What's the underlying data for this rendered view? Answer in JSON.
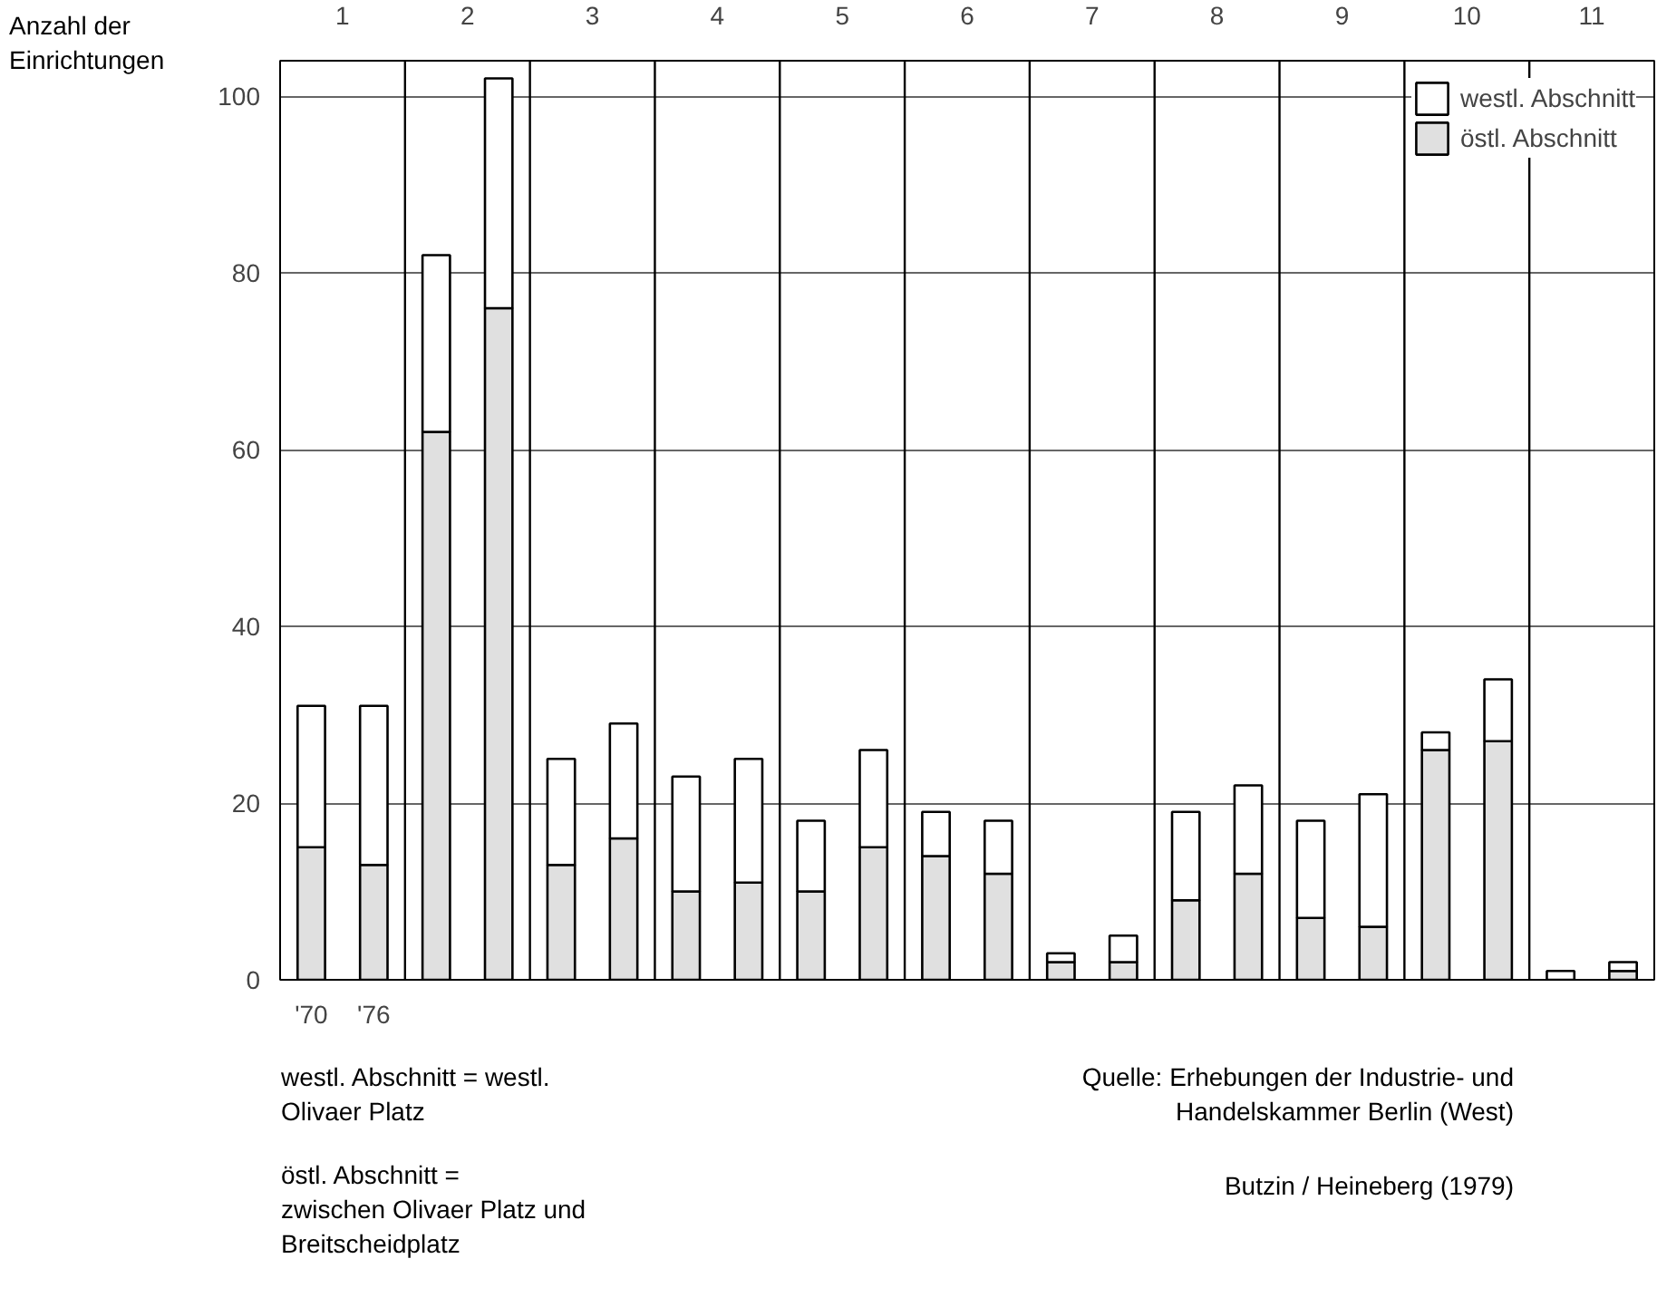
{
  "chart_data": {
    "type": "bar",
    "stacked": true,
    "ylabel": "Anzahl der Einrichtungen",
    "categories": [
      "'70",
      "'76",
      null,
      null,
      null,
      null,
      null,
      null,
      null,
      null,
      null,
      null,
      null,
      null,
      null,
      null,
      null,
      null,
      null,
      null,
      null,
      null
    ],
    "series": [
      {
        "name": "östl. Abschnitt",
        "color": "#e0e0e0",
        "values": [
          15,
          13,
          62,
          76,
          13,
          16,
          10,
          11,
          10,
          15,
          14,
          12,
          2,
          2,
          9,
          12,
          7,
          6,
          26,
          27,
          0,
          1
        ]
      },
      {
        "name": "westl. Abschnitt",
        "color": "#ffffff",
        "values": [
          16,
          18,
          20,
          26,
          12,
          13,
          13,
          14,
          8,
          11,
          5,
          6,
          1,
          3,
          10,
          10,
          11,
          15,
          2,
          7,
          1,
          1
        ]
      }
    ],
    "ylim": [
      0,
      104
    ],
    "yticks": [
      0,
      20,
      40,
      60,
      80,
      100
    ],
    "x2lim": [
      0.5,
      11.5
    ],
    "x2ticks": [
      1,
      2,
      3,
      4,
      5,
      6,
      7,
      8,
      9,
      10,
      11,
      {
        "value": 1.5,
        "label": null
      },
      {
        "value": 2.5,
        "label": null
      },
      {
        "value": 3.5,
        "label": null
      },
      {
        "value": 4.5,
        "label": null
      },
      {
        "value": 5.5,
        "label": null
      },
      {
        "value": 6.5,
        "label": null
      },
      {
        "value": 7.5,
        "label": null
      },
      {
        "value": 8.5,
        "label": null
      },
      {
        "value": 9.5,
        "label": null
      },
      {
        "value": 10.5,
        "label": null
      }
    ],
    "grid": true,
    "legend": "top right",
    "annotations": [
      "westl. Abschnitt =  westl. Olivaer Platz",
      "östl. Abschnitt  =  zwischen Olivaer Platz und Breitscheidplatz",
      "Quelle: Erhebungen der Industrie- und Handelskammer Berlin (West)",
      "Butzin / Heineberg (1979)"
    ]
  }
}
